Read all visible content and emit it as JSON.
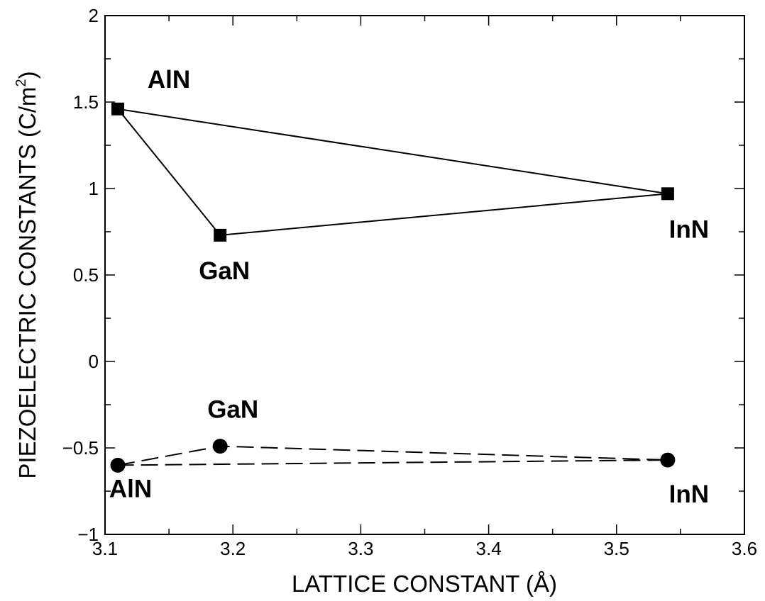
{
  "chart_data": {
    "type": "scatter",
    "xlabel": "LATTICE CONSTANT (Å)",
    "ylabel": "PIEZOELECTRIC CONSTANTS (C/m",
    "ylabel_sup": "2",
    "ylabel_close": ")",
    "xlim": [
      3.1,
      3.6
    ],
    "ylim": [
      -1,
      2
    ],
    "x_ticks": [
      3.1,
      3.2,
      3.3,
      3.4,
      3.5,
      3.6
    ],
    "x_tick_labels": [
      "3.1",
      "3.2",
      "3.3",
      "3.4",
      "3.5",
      "3.6"
    ],
    "y_ticks": [
      -1,
      -0.5,
      0,
      0.5,
      1,
      1.5,
      2
    ],
    "y_tick_labels": [
      "−1",
      "−0.5",
      "0",
      "0.5",
      "1",
      "1.5",
      "2"
    ],
    "grid": false,
    "series": [
      {
        "marker": "square",
        "line": "solid",
        "closed": true,
        "points": [
          {
            "label": "AlN",
            "x": 3.11,
            "y": 1.46
          },
          {
            "label": "GaN",
            "x": 3.19,
            "y": 0.73
          },
          {
            "label": "InN",
            "x": 3.54,
            "y": 0.97
          }
        ]
      },
      {
        "marker": "circle",
        "line": "dashed",
        "closed": true,
        "points": [
          {
            "label": "AlN",
            "x": 3.11,
            "y": -0.6
          },
          {
            "label": "GaN",
            "x": 3.19,
            "y": -0.49
          },
          {
            "label": "InN",
            "x": 3.54,
            "y": -0.57
          }
        ]
      }
    ]
  }
}
